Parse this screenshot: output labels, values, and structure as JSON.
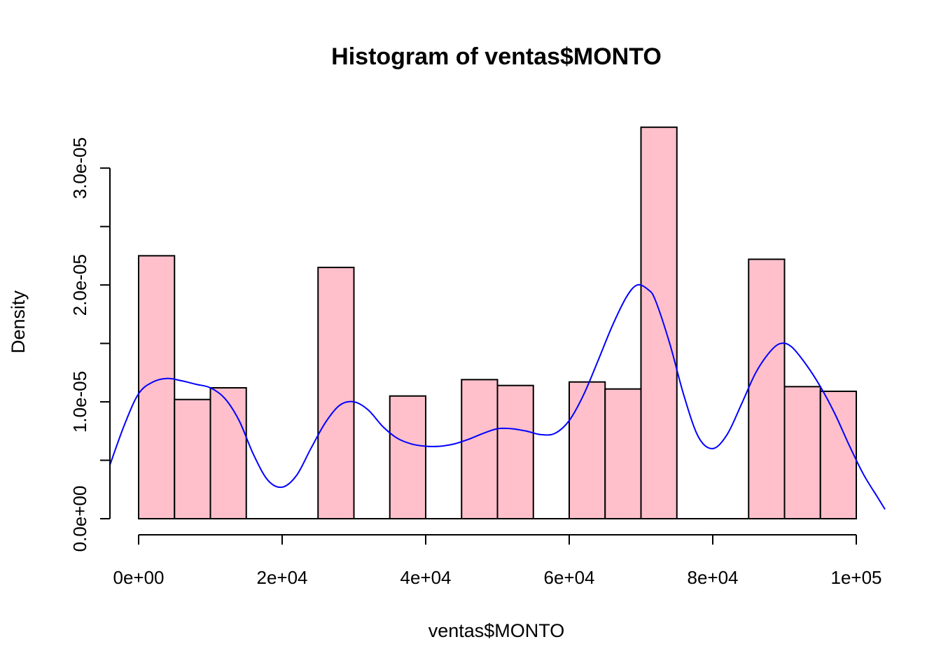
{
  "chart_data": {
    "type": "bar",
    "subtype": "histogram",
    "title": "Histogram of ventas$MONTO",
    "xlabel": "ventas$MONTO",
    "ylabel": "Density",
    "bar_color": "#ffc0cb",
    "line_color": "#0000ff",
    "xlim": [
      -4000,
      104000
    ],
    "ylim": [
      0,
      3.6e-05
    ],
    "x_ticks": [
      {
        "value": 0,
        "label": "0e+00"
      },
      {
        "value": 20000,
        "label": "2e+04"
      },
      {
        "value": 40000,
        "label": "4e+04"
      },
      {
        "value": 60000,
        "label": "6e+04"
      },
      {
        "value": 80000,
        "label": "8e+04"
      },
      {
        "value": 100000,
        "label": "1e+05"
      }
    ],
    "y_ticks": [
      {
        "value": 0,
        "label": "0.0e+00"
      },
      {
        "value": 5e-06,
        "label": ""
      },
      {
        "value": 1e-05,
        "label": "1.0e-05"
      },
      {
        "value": 1.5e-05,
        "label": ""
      },
      {
        "value": 2e-05,
        "label": "2.0e-05"
      },
      {
        "value": 2.5e-05,
        "label": ""
      },
      {
        "value": 3e-05,
        "label": "3.0e-05"
      }
    ],
    "bins": [
      {
        "start": 0,
        "end": 5000,
        "density": 2.25e-05
      },
      {
        "start": 5000,
        "end": 10000,
        "density": 1.02e-05
      },
      {
        "start": 10000,
        "end": 15000,
        "density": 1.12e-05
      },
      {
        "start": 15000,
        "end": 20000,
        "density": 0
      },
      {
        "start": 20000,
        "end": 25000,
        "density": 0
      },
      {
        "start": 25000,
        "end": 30000,
        "density": 2.15e-05
      },
      {
        "start": 30000,
        "end": 35000,
        "density": 0
      },
      {
        "start": 35000,
        "end": 40000,
        "density": 1.05e-05
      },
      {
        "start": 40000,
        "end": 45000,
        "density": 0
      },
      {
        "start": 45000,
        "end": 50000,
        "density": 1.19e-05
      },
      {
        "start": 50000,
        "end": 55000,
        "density": 1.14e-05
      },
      {
        "start": 55000,
        "end": 60000,
        "density": 0
      },
      {
        "start": 60000,
        "end": 65000,
        "density": 1.17e-05
      },
      {
        "start": 65000,
        "end": 70000,
        "density": 1.11e-05
      },
      {
        "start": 70000,
        "end": 75000,
        "density": 3.35e-05
      },
      {
        "start": 75000,
        "end": 80000,
        "density": 0
      },
      {
        "start": 80000,
        "end": 85000,
        "density": 0
      },
      {
        "start": 85000,
        "end": 90000,
        "density": 2.22e-05
      },
      {
        "start": 90000,
        "end": 95000,
        "density": 1.13e-05
      },
      {
        "start": 95000,
        "end": 100000,
        "density": 1.09e-05
      }
    ],
    "density_curve": [
      [
        -4000,
        4.6e-06
      ],
      [
        -2000,
        8e-06
      ],
      [
        0,
        1.07e-05
      ],
      [
        2000,
        1.17e-05
      ],
      [
        4000,
        1.2e-05
      ],
      [
        6000,
        1.18e-05
      ],
      [
        8000,
        1.15e-05
      ],
      [
        10000,
        1.12e-05
      ],
      [
        12000,
        1.03e-05
      ],
      [
        14000,
        8.4e-06
      ],
      [
        16000,
        5.5e-06
      ],
      [
        18000,
        3.3e-06
      ],
      [
        20000,
        2.7e-06
      ],
      [
        22000,
        3.7e-06
      ],
      [
        24000,
        6e-06
      ],
      [
        26000,
        8.2e-06
      ],
      [
        28000,
        9.7e-06
      ],
      [
        30000,
        1e-05
      ],
      [
        32000,
        9.3e-06
      ],
      [
        34000,
        7.9e-06
      ],
      [
        36000,
        6.9e-06
      ],
      [
        38000,
        6.4e-06
      ],
      [
        40000,
        6.2e-06
      ],
      [
        42000,
        6.2e-06
      ],
      [
        44000,
        6.4e-06
      ],
      [
        46000,
        6.8e-06
      ],
      [
        48000,
        7.3e-06
      ],
      [
        50000,
        7.7e-06
      ],
      [
        52000,
        7.7e-06
      ],
      [
        54000,
        7.5e-06
      ],
      [
        56000,
        7.2e-06
      ],
      [
        58000,
        7.3e-06
      ],
      [
        60000,
        8.4e-06
      ],
      [
        62000,
        1.06e-05
      ],
      [
        64000,
        1.35e-05
      ],
      [
        66000,
        1.65e-05
      ],
      [
        68000,
        1.9e-05
      ],
      [
        69500,
        2e-05
      ],
      [
        71000,
        1.96e-05
      ],
      [
        72000,
        1.87e-05
      ],
      [
        74000,
        1.5e-05
      ],
      [
        76000,
        1.05e-05
      ],
      [
        78000,
        7e-06
      ],
      [
        80000,
        6e-06
      ],
      [
        82000,
        7.2e-06
      ],
      [
        84000,
        9.8e-06
      ],
      [
        86000,
        1.25e-05
      ],
      [
        88000,
        1.43e-05
      ],
      [
        89500,
        1.5e-05
      ],
      [
        91000,
        1.47e-05
      ],
      [
        93000,
        1.32e-05
      ],
      [
        95000,
        1.13e-05
      ],
      [
        97000,
        9e-06
      ],
      [
        99000,
        6.3e-06
      ],
      [
        101000,
        3.8e-06
      ],
      [
        103000,
        1.8e-06
      ],
      [
        104000,
        8e-07
      ]
    ]
  }
}
